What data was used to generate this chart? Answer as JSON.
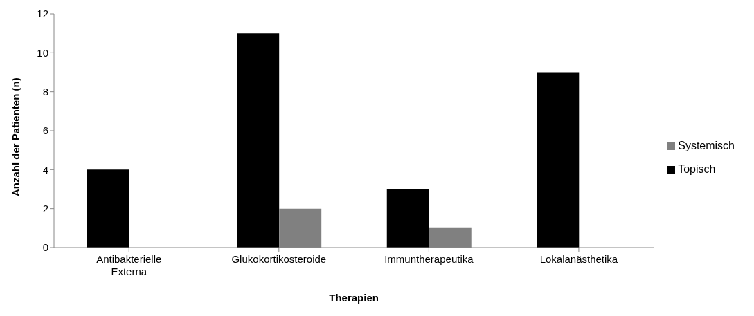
{
  "chart_data": {
    "type": "bar",
    "xlabel": "Therapien",
    "ylabel": "Anzahl der Patienten (n)",
    "categories": [
      "Antibakterielle Externa",
      "Glukokortikosteroide",
      "Immuntherapeutika",
      "Lokalanästhetika"
    ],
    "series": [
      {
        "name": "Topisch",
        "color": "#000000",
        "values": [
          4,
          11,
          3,
          9
        ]
      },
      {
        "name": "Systemisch",
        "color": "#808080",
        "values": [
          0,
          2,
          1,
          0
        ]
      }
    ],
    "ylim": [
      0,
      12
    ],
    "yticks": [
      0,
      2,
      4,
      6,
      8,
      10,
      12
    ],
    "grid": false,
    "legend": "right"
  }
}
